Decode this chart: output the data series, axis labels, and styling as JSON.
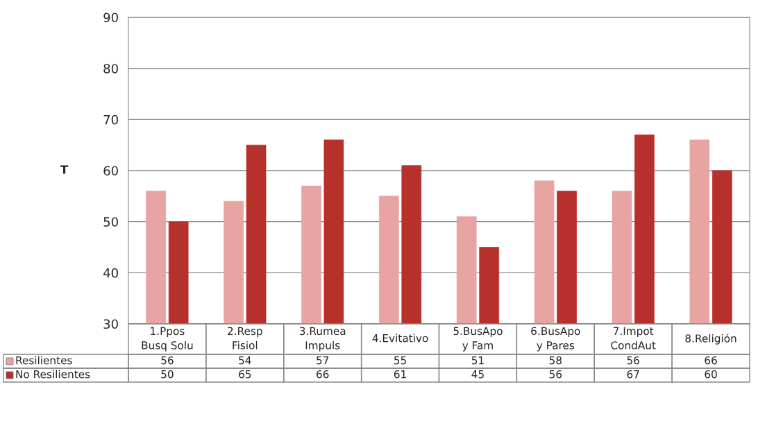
{
  "chart_data": {
    "type": "bar",
    "ylabel": "T",
    "categories": [
      "1.Ppos Busq Solu",
      "2.Resp Fisiol",
      "3.Rumea Impuls",
      "4.Evitativo",
      "5.BusApo y Fam",
      "6.BusApo y Pares",
      "7.Impot CondAut",
      "8.Religión"
    ],
    "series": [
      {
        "name": "Resilientes",
        "color": "#e8a3a3",
        "values": [
          56,
          54,
          57,
          55,
          51,
          58,
          56,
          66
        ]
      },
      {
        "name": "No Resilientes",
        "color": "#b8302b",
        "values": [
          50,
          65,
          66,
          61,
          45,
          56,
          67,
          60
        ]
      }
    ],
    "ylim": [
      30,
      90
    ],
    "yticks": [
      30,
      40,
      50,
      60,
      70,
      80,
      90
    ],
    "grid": "y",
    "data_labels": true,
    "legend": "bottom"
  }
}
